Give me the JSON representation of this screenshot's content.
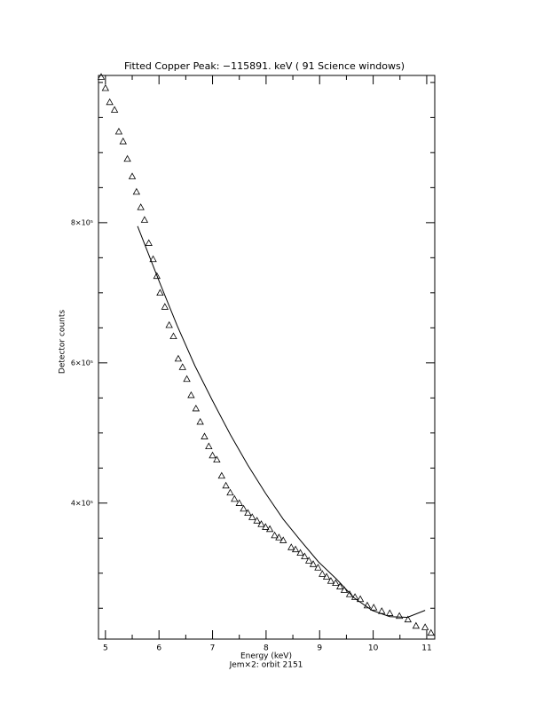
{
  "chart_data": {
    "type": "scatter",
    "title": "Fitted Copper Peak:     −115891. keV (     91 Science windows)",
    "x_label": "Energy (keV)",
    "subtitle": "Jem×2: orbit 2151",
    "y_label": "Detector counts",
    "xlim": [
      4.87,
      11.15
    ],
    "ylim": [
      206000,
      1010000
    ],
    "xticks": [
      5,
      6,
      7,
      8,
      9,
      10,
      11
    ],
    "xminorticks": [
      5.5,
      6.5,
      7.5,
      8.5,
      9.5,
      10.5
    ],
    "yticks": [
      {
        "value": 400000,
        "label": "4×10⁵"
      },
      {
        "value": 600000,
        "label": "6×10⁵"
      },
      {
        "value": 800000,
        "label": "8×10⁵"
      }
    ],
    "yminorticks": [
      250000,
      300000,
      350000,
      450000,
      500000,
      550000,
      650000,
      700000,
      750000,
      850000,
      900000,
      950000,
      1000000
    ],
    "grid": false,
    "series": [
      {
        "style": "triangle",
        "color": "#000000",
        "x": [
          4.92,
          5.0,
          5.08,
          5.17,
          5.25,
          5.33,
          5.41,
          5.5,
          5.58,
          5.66,
          5.73,
          5.81,
          5.89,
          5.96,
          6.02,
          6.11,
          6.19,
          6.27,
          6.36,
          6.44,
          6.52,
          6.6,
          6.69,
          6.77,
          6.85,
          6.93,
          7.0,
          7.08,
          7.17,
          7.25,
          7.33,
          7.41,
          7.5,
          7.58,
          7.66,
          7.74,
          7.83,
          7.91,
          7.99,
          8.07,
          8.16,
          8.24,
          8.32,
          8.47,
          8.55,
          8.64,
          8.72,
          8.8,
          8.88,
          8.97,
          9.05,
          9.13,
          9.21,
          9.3,
          9.38,
          9.46,
          9.56,
          9.66,
          9.76,
          9.89,
          10.01,
          10.16,
          10.31,
          10.49,
          10.65,
          10.8,
          10.97,
          11.08
        ],
        "values": [
          1008000,
          992000,
          972000,
          961000,
          930000,
          916000,
          891000,
          866000,
          844000,
          822000,
          804000,
          771000,
          748000,
          724000,
          700000,
          680000,
          654000,
          638000,
          606000,
          594000,
          577000,
          554000,
          535000,
          516000,
          495000,
          481000,
          468000,
          462000,
          439000,
          425000,
          415000,
          406000,
          400000,
          392000,
          386000,
          380000,
          375000,
          370000,
          366000,
          363000,
          354000,
          351000,
          347000,
          337000,
          334000,
          329000,
          324000,
          318000,
          313000,
          308000,
          299000,
          295000,
          289000,
          286000,
          281000,
          276000,
          270000,
          266000,
          263000,
          254000,
          251000,
          246000,
          243000,
          239000,
          234000,
          225000,
          223000,
          215000
        ]
      },
      {
        "style": "line",
        "color": "#000000",
        "x": [
          5.6,
          6.01,
          6.34,
          6.67,
          7.0,
          7.33,
          7.66,
          7.99,
          8.32,
          8.65,
          8.98,
          9.31,
          9.64,
          9.98,
          10.31,
          10.64,
          10.97
        ],
        "values": [
          795000,
          715000,
          653000,
          596000,
          546000,
          498000,
          454000,
          414000,
          377000,
          346000,
          316000,
          292000,
          265000,
          247000,
          238000,
          237000,
          247000
        ]
      }
    ]
  }
}
